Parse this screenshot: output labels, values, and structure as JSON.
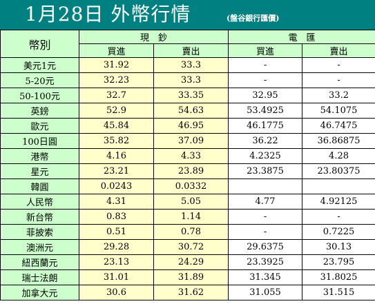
{
  "page": {
    "title": "1月28日 外幣行情",
    "subtitle": "(盤谷銀行匯價)"
  },
  "table": {
    "corner_label": "幣別",
    "groups": [
      {
        "label": "現　鈔"
      },
      {
        "label": "電　匯"
      }
    ],
    "subheaders": [
      "買進",
      "賣出",
      "買進",
      "賣出"
    ],
    "rows": [
      {
        "name": "美元1元",
        "cash_buy": "31.92",
        "cash_sell": "33.3",
        "wire_buy": "-",
        "wire_sell": "-"
      },
      {
        "name": "5-20元",
        "cash_buy": "32.23",
        "cash_sell": "33.3",
        "wire_buy": "-",
        "wire_sell": "-"
      },
      {
        "name": "50-100元",
        "cash_buy": "32.7",
        "cash_sell": "33.35",
        "wire_buy": "32.95",
        "wire_sell": "33.2"
      },
      {
        "name": "英鎊",
        "cash_buy": "52.9",
        "cash_sell": "54.63",
        "wire_buy": "53.4925",
        "wire_sell": "54.1075"
      },
      {
        "name": "歐元",
        "cash_buy": "45.84",
        "cash_sell": "46.95",
        "wire_buy": "46.1775",
        "wire_sell": "46.7475"
      },
      {
        "name": "100日圓",
        "cash_buy": "35.82",
        "cash_sell": "37.09",
        "wire_buy": "36.22",
        "wire_sell": "36.86875"
      },
      {
        "name": "港幣",
        "cash_buy": "4.16",
        "cash_sell": "4.33",
        "wire_buy": "4.2325",
        "wire_sell": "4.28"
      },
      {
        "name": "星元",
        "cash_buy": "23.21",
        "cash_sell": "23.89",
        "wire_buy": "23.3875",
        "wire_sell": "23.80375"
      },
      {
        "name": "韓圓",
        "cash_buy": "0.0243",
        "cash_sell": "0.0332",
        "wire_buy": "",
        "wire_sell": ""
      },
      {
        "name": "人民幣",
        "cash_buy": "4.31",
        "cash_sell": "5.05",
        "wire_buy": "4.77",
        "wire_sell": "4.92125"
      },
      {
        "name": "新台幣",
        "cash_buy": "0.83",
        "cash_sell": "1.14",
        "wire_buy": "-",
        "wire_sell": "-"
      },
      {
        "name": "菲披索",
        "cash_buy": "0.51",
        "cash_sell": "0.78",
        "wire_buy": "-",
        "wire_sell": "0.7225"
      },
      {
        "name": "澳洲元",
        "cash_buy": "29.28",
        "cash_sell": "30.72",
        "wire_buy": "29.6375",
        "wire_sell": "30.13"
      },
      {
        "name": "紐西蘭元",
        "cash_buy": "23.13",
        "cash_sell": "24.29",
        "wire_buy": "23.3925",
        "wire_sell": "23.795"
      },
      {
        "name": "瑞士法朗",
        "cash_buy": "31.01",
        "cash_sell": "31.89",
        "wire_buy": "31.345",
        "wire_sell": "31.8025"
      },
      {
        "name": "加拿大元",
        "cash_buy": "30.6",
        "cash_sell": "31.62",
        "wire_buy": "31.055",
        "wire_sell": "31.515"
      }
    ]
  },
  "colors": {
    "header_bg": "#008081",
    "label_bg": "#ccffcc",
    "cash_bg": "#ffffcc",
    "wire_bg": "#ffffff"
  }
}
